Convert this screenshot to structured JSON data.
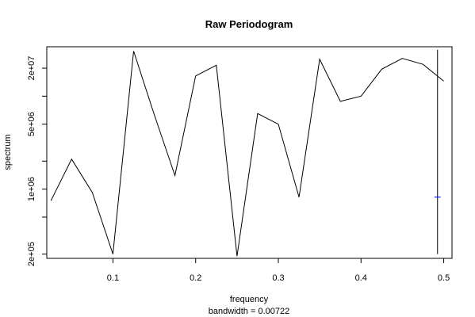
{
  "chart_data": {
    "type": "line",
    "title": "Raw Periodogram",
    "xlabel": "frequency",
    "ylabel": "spectrum",
    "sublabel": "bandwidth = 0.00722",
    "log_y": true,
    "xlim": [
      0.02,
      0.51
    ],
    "ylim": [
      180000,
      34000000
    ],
    "x_ticks": [
      0.1,
      0.2,
      0.3,
      0.4,
      0.5
    ],
    "x_tick_labels": [
      "0.1",
      "0.2",
      "0.3",
      "0.4",
      "0.5"
    ],
    "y_ticks": [
      200000,
      500000,
      1000000,
      2000000,
      5000000,
      10000000,
      20000000
    ],
    "y_tick_labels": [
      "2e+05",
      "",
      "1e+06",
      "",
      "5e+06",
      "",
      "2e+07"
    ],
    "series": [
      {
        "x": [
          0.025,
          0.05,
          0.075,
          0.1,
          0.125,
          0.15,
          0.175,
          0.2,
          0.225,
          0.25,
          0.275,
          0.3,
          0.325,
          0.35,
          0.375,
          0.4,
          0.425,
          0.45,
          0.475,
          0.5
        ],
        "y": [
          750000,
          2100000,
          920000,
          200000,
          30500000,
          6300000,
          1400000,
          16500000,
          21500000,
          190000,
          6500000,
          5000000,
          820000,
          25000000,
          8800000,
          10000000,
          19500000,
          25500000,
          22000000,
          14500000
        ]
      }
    ],
    "ci_bar": {
      "x": 0.4925,
      "y_low": 200000,
      "y_high": 31500000,
      "mark_y": 820000,
      "color": "#0000ff"
    }
  }
}
